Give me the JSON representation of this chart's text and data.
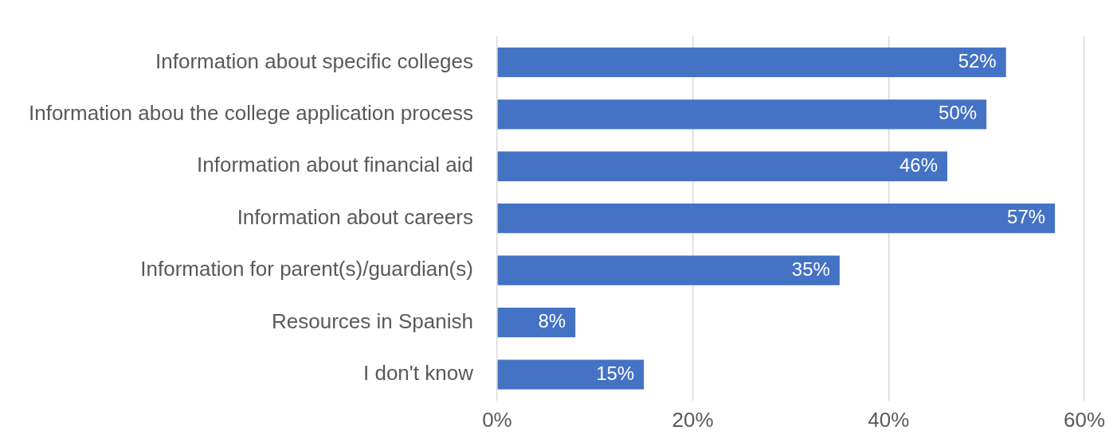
{
  "chart_data": {
    "type": "bar",
    "orientation": "horizontal",
    "categories": [
      "Information about specific colleges",
      "Information abou the college application process",
      "Information about financial aid",
      "Information about careers",
      "Information for parent(s)/guardian(s)",
      "Resources in Spanish",
      "I don't know"
    ],
    "values": [
      52,
      50,
      46,
      57,
      35,
      8,
      15
    ],
    "value_labels": [
      "52%",
      "50%",
      "46%",
      "57%",
      "35%",
      "8%",
      "15%"
    ],
    "color": "#4472c4",
    "xlim": [
      0,
      60
    ],
    "xticks": [
      {
        "value": 0,
        "label": "0%"
      },
      {
        "value": 20,
        "label": "20%"
      },
      {
        "value": 40,
        "label": "40%"
      },
      {
        "value": 60,
        "label": "60%"
      }
    ],
    "grid": "x"
  }
}
